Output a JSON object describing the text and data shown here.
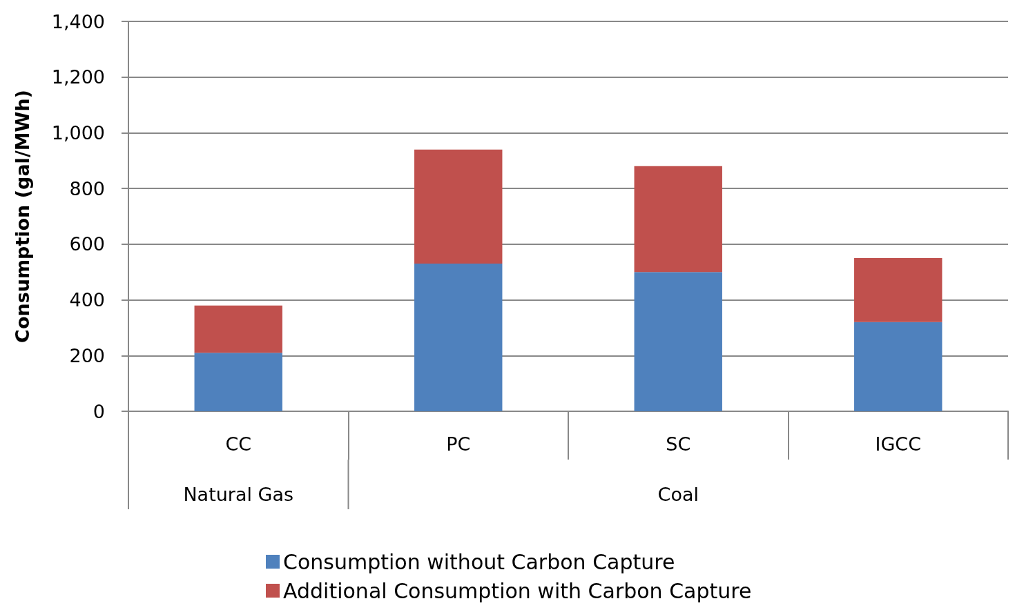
{
  "chart_data": {
    "type": "bar",
    "stacked": true,
    "ylabel": "Consumption (gal/MWh)",
    "categories": [
      "CC",
      "PC",
      "SC",
      "IGCC"
    ],
    "series": [
      {
        "name": "Consumption without Carbon Capture",
        "color": "#4f81bd",
        "values": [
          210,
          530,
          500,
          320
        ]
      },
      {
        "name": "Additional Consumption with Carbon Capture",
        "color": "#c0504d",
        "values": [
          170,
          410,
          380,
          230
        ]
      }
    ],
    "ylim": [
      0,
      1400
    ],
    "yticks": [
      {
        "value": 0,
        "label": "0"
      },
      {
        "value": 200,
        "label": "200"
      },
      {
        "value": 400,
        "label": "400"
      },
      {
        "value": 600,
        "label": "600"
      },
      {
        "value": 800,
        "label": "800"
      },
      {
        "value": 1000,
        "label": "1,000"
      },
      {
        "value": 1200,
        "label": "1,200"
      },
      {
        "value": 1400,
        "label": "1,400"
      }
    ],
    "annotations": [
      "Natural Gas",
      "Coal"
    ],
    "grid": "y",
    "legend": "bottom"
  }
}
